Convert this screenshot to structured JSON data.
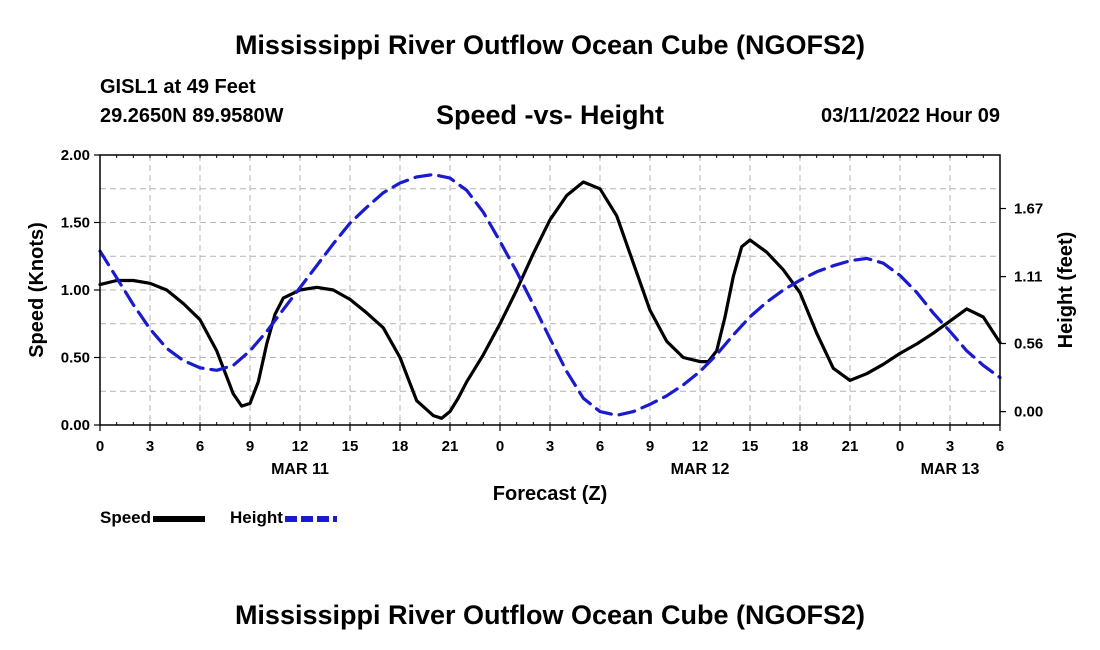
{
  "header": {
    "title": "Mississippi River Outflow Ocean Cube (NGOFS2)",
    "station": "GISL1 at 49 Feet",
    "coords": "29.2650N  89.9580W",
    "subtitle": "Speed -vs- Height",
    "run_time": "03/11/2022 Hour 09"
  },
  "footer": {
    "title": "Mississippi River Outflow Ocean Cube (NGOFS2)"
  },
  "legend": {
    "speed_label": "Speed",
    "height_label": "Height"
  },
  "colors": {
    "speed": "#000000",
    "height": "#1a1ad0",
    "grid": "#b4b4b4"
  },
  "chart_data": {
    "type": "line",
    "xlabel": "Forecast (Z)",
    "ylabel_left": "Speed (Knots)",
    "ylabel_right": "Height (feet)",
    "x_unit": "forecast hour",
    "xlim": [
      0,
      54
    ],
    "ylim_left": [
      0,
      2.0
    ],
    "ylim_right": [
      -0.11,
      2.11
    ],
    "left_ticks": [
      "0.00",
      "0.50",
      "1.00",
      "1.50",
      "2.00"
    ],
    "right_ticks": [
      "0.00",
      "0.56",
      "1.11",
      "1.67"
    ],
    "x_tick_labels": [
      "0",
      "3",
      "6",
      "9",
      "12",
      "15",
      "18",
      "21",
      "0",
      "3",
      "6",
      "9",
      "12",
      "15",
      "18",
      "21",
      "0",
      "3",
      "6"
    ],
    "date_labels": [
      {
        "x": 12,
        "label": "MAR 11"
      },
      {
        "x": 36,
        "label": "MAR 12"
      },
      {
        "x": 51,
        "label": "MAR 13"
      }
    ],
    "series": [
      {
        "name": "Speed",
        "axis": "left",
        "style": "solid",
        "x": [
          0,
          1,
          2,
          3,
          4,
          5,
          6,
          7,
          8,
          8.5,
          9,
          9.5,
          10,
          10.5,
          11,
          12,
          13,
          14,
          15,
          16,
          17,
          18,
          19,
          20,
          20.5,
          21,
          21.5,
          22,
          23,
          24,
          25,
          26,
          27,
          28,
          29,
          30,
          31,
          32,
          33,
          34,
          35,
          36,
          36.5,
          37,
          37.5,
          38,
          38.5,
          39,
          40,
          41,
          42,
          43,
          44,
          45,
          46,
          47,
          48,
          49,
          50,
          51,
          52,
          53,
          54
        ],
        "values": [
          1.04,
          1.07,
          1.07,
          1.05,
          1.0,
          0.9,
          0.78,
          0.55,
          0.23,
          0.14,
          0.16,
          0.32,
          0.6,
          0.82,
          0.94,
          1.0,
          1.02,
          1.0,
          0.93,
          0.83,
          0.72,
          0.5,
          0.18,
          0.07,
          0.05,
          0.1,
          0.2,
          0.32,
          0.52,
          0.75,
          1.0,
          1.27,
          1.52,
          1.7,
          1.8,
          1.75,
          1.55,
          1.2,
          0.85,
          0.62,
          0.5,
          0.47,
          0.47,
          0.55,
          0.8,
          1.1,
          1.32,
          1.37,
          1.28,
          1.15,
          0.98,
          0.68,
          0.42,
          0.33,
          0.38,
          0.45,
          0.53,
          0.6,
          0.68,
          0.77,
          0.86,
          0.8,
          0.61
        ]
      },
      {
        "name": "Height",
        "axis": "right",
        "style": "dashed",
        "x": [
          0,
          1,
          2,
          3,
          4,
          5,
          6,
          7,
          8,
          9,
          10,
          11,
          12,
          13,
          14,
          15,
          16,
          17,
          18,
          19,
          20,
          21,
          22,
          23,
          24,
          25,
          26,
          27,
          28,
          29,
          30,
          31,
          32,
          33,
          34,
          35,
          36,
          37,
          38,
          39,
          40,
          41,
          42,
          43,
          44,
          45,
          46,
          47,
          48,
          49,
          50,
          51,
          52,
          53,
          54
        ],
        "values": [
          1.32,
          1.1,
          0.88,
          0.68,
          0.52,
          0.42,
          0.36,
          0.34,
          0.38,
          0.5,
          0.66,
          0.84,
          1.02,
          1.2,
          1.38,
          1.55,
          1.68,
          1.8,
          1.88,
          1.93,
          1.95,
          1.92,
          1.82,
          1.64,
          1.4,
          1.15,
          0.88,
          0.6,
          0.33,
          0.11,
          0.0,
          -0.03,
          0.0,
          0.06,
          0.13,
          0.22,
          0.33,
          0.47,
          0.63,
          0.78,
          0.9,
          1.0,
          1.08,
          1.15,
          1.2,
          1.24,
          1.26,
          1.22,
          1.12,
          0.98,
          0.81,
          0.66,
          0.5,
          0.38,
          0.28
        ]
      }
    ]
  }
}
